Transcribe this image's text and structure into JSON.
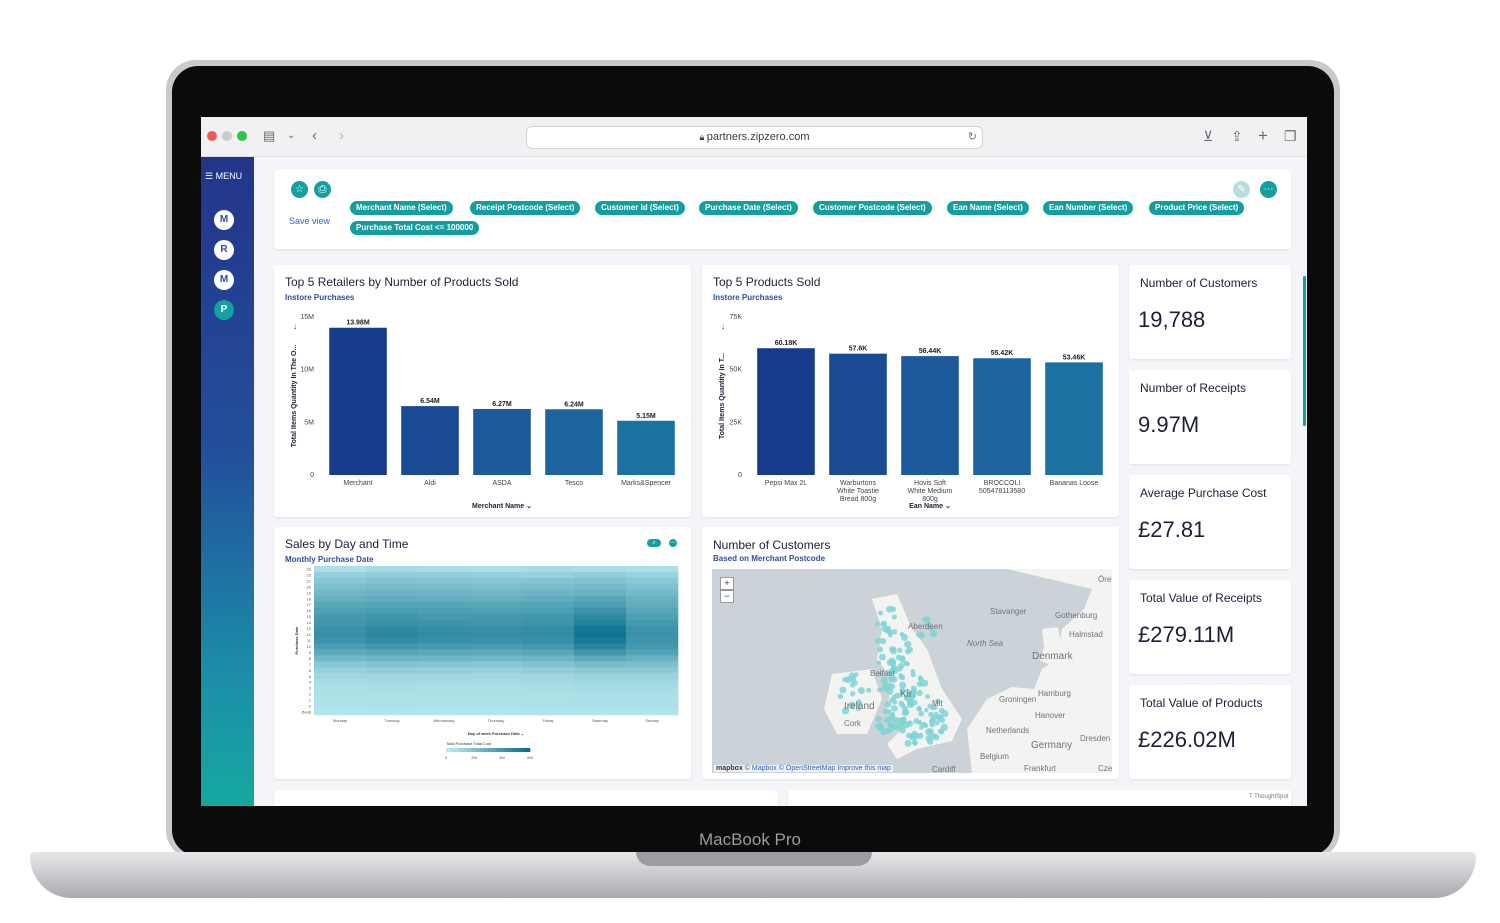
{
  "device": {
    "label": "MacBook Pro"
  },
  "browser": {
    "url": "partners.zipzero.com"
  },
  "sidebar": {
    "menu_label": "MENU",
    "avatars": [
      "M",
      "R",
      "M",
      "P"
    ]
  },
  "filters": {
    "save_view_label": "Save view",
    "chips": [
      {
        "field": "Merchant Name",
        "value": "(Select)"
      },
      {
        "field": "Receipt Postcode",
        "value": "(Select)"
      },
      {
        "field": "Customer Id",
        "value": "(Select)"
      },
      {
        "field": "Purchase Date",
        "value": "(Select)"
      },
      {
        "field": "Customer Postcode",
        "value": "(Select)"
      },
      {
        "field": "Ean Name",
        "value": "(Select)"
      },
      {
        "field": "Ean Number",
        "value": "(Select)"
      },
      {
        "field": "Product Price",
        "value": "(Select)"
      },
      {
        "field": "Purchase Total Cost",
        "value": "<= 100000"
      }
    ]
  },
  "retailers_card": {
    "title": "Top 5 Retailers by Number of Products Sold",
    "subtitle": "Instore Purchases"
  },
  "products_card": {
    "title": "Top 5 Products Sold",
    "subtitle": "Instore Purchases"
  },
  "heatmap_card": {
    "title": "Sales by Day and Time",
    "subtitle": "Monthly Purchase Date"
  },
  "map_card": {
    "title": "Number of Customers",
    "subtitle": "Based on Merchant Postcode",
    "labels": [
      "Stavanger",
      "Aberdeen",
      "North Sea",
      "Gothenburg",
      "Halmstad",
      "Denmark",
      "Groningen",
      "Hamburg",
      "Hanover",
      "Ireland",
      "Cork",
      "Netherlands",
      "Germany",
      "Dresden",
      "Belgium",
      "Frankfurt",
      "Cardiff",
      "Czec",
      "Örebro",
      "Belfast",
      "Kir",
      "Mit"
    ],
    "attribution": [
      "mapbox",
      "© Mapbox",
      "© OpenStreetMap",
      "Improve this map"
    ]
  },
  "kpis": [
    {
      "title": "Number of Customers",
      "value": "19,788"
    },
    {
      "title": "Number of Receipts",
      "value": "9.97M"
    },
    {
      "title": "Average Purchase Cost",
      "value": "£27.81"
    },
    {
      "title": "Total Value of Receipts",
      "value": "£279.11M"
    },
    {
      "title": "Total Value of Products",
      "value": "£226.02M"
    }
  ],
  "footer": {
    "powered_by": "ThoughtSpot"
  },
  "colors": {
    "accent": "#15a0a0",
    "bar_dark": "#1b3c8f",
    "bar_mid": "#1f4e9a",
    "bar_light": "#1b6fa0"
  },
  "chart_data": [
    {
      "type": "bar",
      "title": "Top 5 Retailers by Number of Products Sold",
      "subtitle": "Instore Purchases",
      "xlabel": "Merchant Name",
      "ylabel": "Total Items Quantity In The O...",
      "categories": [
        "Merchant",
        "Aldi",
        "ASDA",
        "Tesco",
        "Marks&Spencer"
      ],
      "values": [
        13980000,
        6540000,
        6270000,
        6240000,
        5150000
      ],
      "value_labels": [
        "13.98M",
        "6.54M",
        "6.27M",
        "6.24M",
        "5.15M"
      ],
      "yticks": [
        "0",
        "5M",
        "10M",
        "15M"
      ],
      "ylim": [
        0,
        15000000
      ]
    },
    {
      "type": "bar",
      "title": "Top 5 Products Sold",
      "subtitle": "Instore Purchases",
      "xlabel": "Ean Name",
      "ylabel": "Total Items Quantity In T...",
      "categories": [
        "Pepsi Max 2L",
        "Warburtons White Toastie Bread 800g",
        "Hovis Soft White Medium 800g",
        "BROCCOLI 505478113580",
        "Bananas Loose"
      ],
      "category_lines": [
        [
          "Pepsi Max 2L"
        ],
        [
          "Warburtons",
          "White Toastie",
          "Bread 800g"
        ],
        [
          "Hovis Soft",
          "White Medium",
          "800g"
        ],
        [
          "BROCCOLI",
          "505478113580"
        ],
        [
          "Bananas Loose"
        ]
      ],
      "values": [
        60180,
        57600,
        56440,
        55420,
        53460
      ],
      "value_labels": [
        "60.18K",
        "57.6K",
        "56.44K",
        "55.42K",
        "53.46K"
      ],
      "yticks": [
        "0",
        "25K",
        "50K",
        "75K"
      ],
      "ylim": [
        0,
        75000
      ]
    },
    {
      "type": "heatmap",
      "title": "Sales by Day and Time",
      "subtitle": "Monthly Purchase Date",
      "xlabel": "Day of week Purchase Date",
      "ylabel": "Purchase Date",
      "x": [
        "Monday",
        "Tuesday",
        "Wednesday",
        "Thursday",
        "Friday",
        "Saturday",
        "Sunday"
      ],
      "y": [
        "23",
        "22",
        "21",
        "20",
        "19",
        "18",
        "17",
        "16",
        "15",
        "14",
        "13",
        "12",
        "11",
        "10",
        "9",
        "8",
        "7",
        "6",
        "5",
        "4",
        "3",
        "2",
        "1",
        "0",
        "{Null}"
      ],
      "legend_title": "Total Purchase Total Cost",
      "legend_ticks": [
        "0",
        "2M",
        "4M",
        "6M"
      ],
      "values": [
        [
          0.1,
          0.12,
          0.11,
          0.1,
          0.12,
          0.11,
          0.1
        ],
        [
          0.22,
          0.24,
          0.23,
          0.22,
          0.21,
          0.24,
          0.2
        ],
        [
          0.3,
          0.32,
          0.31,
          0.3,
          0.31,
          0.33,
          0.28
        ],
        [
          0.36,
          0.38,
          0.37,
          0.36,
          0.37,
          0.39,
          0.34
        ],
        [
          0.42,
          0.44,
          0.43,
          0.42,
          0.44,
          0.46,
          0.4
        ],
        [
          0.48,
          0.5,
          0.49,
          0.48,
          0.5,
          0.55,
          0.46
        ],
        [
          0.55,
          0.57,
          0.56,
          0.55,
          0.57,
          0.62,
          0.5
        ],
        [
          0.6,
          0.63,
          0.61,
          0.6,
          0.62,
          0.7,
          0.55
        ],
        [
          0.65,
          0.68,
          0.66,
          0.65,
          0.67,
          0.78,
          0.6
        ],
        [
          0.68,
          0.72,
          0.7,
          0.69,
          0.7,
          0.85,
          0.66
        ],
        [
          0.72,
          0.78,
          0.74,
          0.73,
          0.75,
          0.92,
          0.7
        ],
        [
          0.74,
          0.8,
          0.76,
          0.75,
          0.77,
          0.95,
          0.72
        ],
        [
          0.7,
          0.76,
          0.73,
          0.72,
          0.74,
          0.9,
          0.7
        ],
        [
          0.62,
          0.68,
          0.65,
          0.64,
          0.66,
          0.82,
          0.66
        ],
        [
          0.52,
          0.56,
          0.54,
          0.53,
          0.55,
          0.68,
          0.58
        ],
        [
          0.4,
          0.44,
          0.42,
          0.41,
          0.43,
          0.52,
          0.46
        ],
        [
          0.3,
          0.32,
          0.31,
          0.3,
          0.32,
          0.38,
          0.36
        ],
        [
          0.22,
          0.24,
          0.23,
          0.22,
          0.24,
          0.28,
          0.27
        ],
        [
          0.16,
          0.17,
          0.16,
          0.16,
          0.17,
          0.2,
          0.2
        ],
        [
          0.12,
          0.13,
          0.12,
          0.12,
          0.13,
          0.15,
          0.15
        ],
        [
          0.1,
          0.11,
          0.1,
          0.1,
          0.11,
          0.12,
          0.12
        ],
        [
          0.09,
          0.1,
          0.09,
          0.09,
          0.1,
          0.11,
          0.11
        ],
        [
          0.08,
          0.09,
          0.08,
          0.08,
          0.09,
          0.1,
          0.1
        ],
        [
          0.08,
          0.09,
          0.08,
          0.08,
          0.09,
          0.1,
          0.1
        ],
        [
          0.06,
          0.06,
          0.06,
          0.06,
          0.06,
          0.06,
          0.06
        ]
      ]
    }
  ]
}
